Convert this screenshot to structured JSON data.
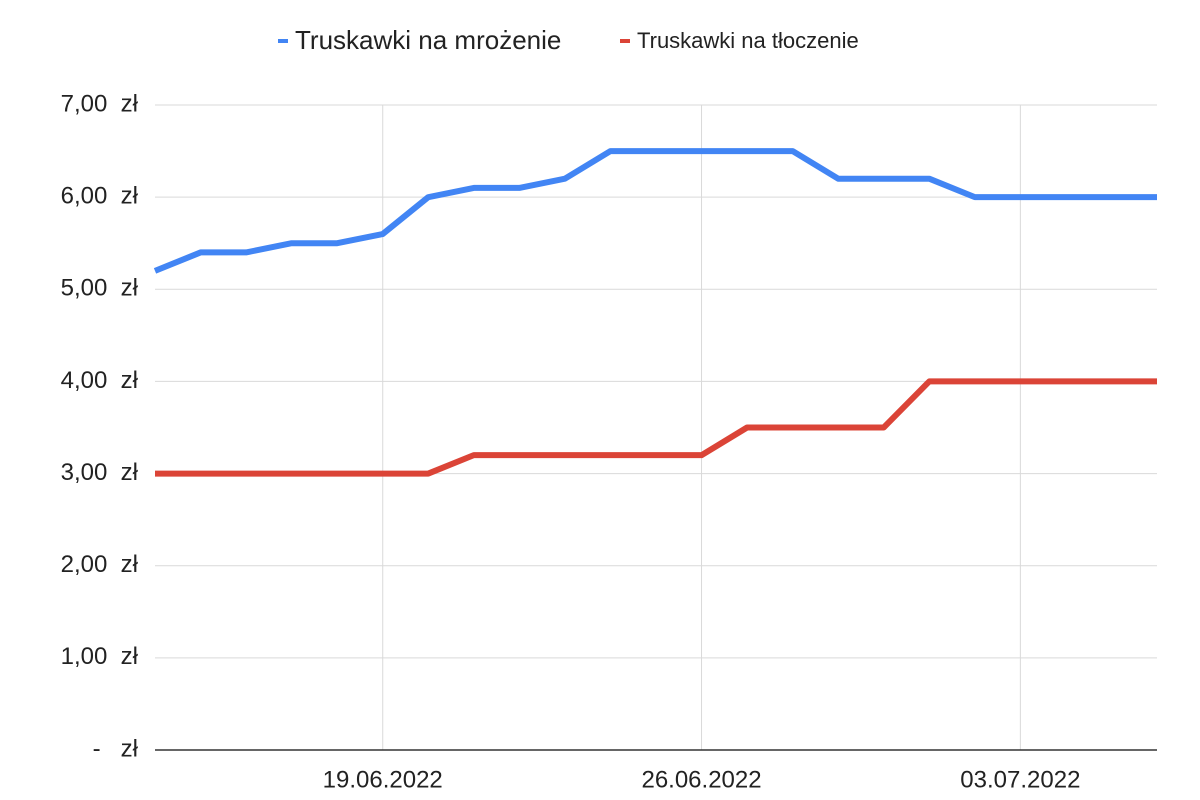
{
  "chart_data": {
    "type": "line",
    "categories": [
      null,
      null,
      null,
      null,
      null,
      "19.06.2022",
      null,
      null,
      null,
      null,
      null,
      null,
      "26.06.2022",
      null,
      null,
      null,
      null,
      null,
      null,
      "03.07.2022",
      null,
      null,
      null
    ],
    "series": [
      {
        "name": "Truskawki na mrożenie",
        "color": "#4285f4",
        "values": [
          5.2,
          5.4,
          5.4,
          5.5,
          5.5,
          5.6,
          6.0,
          6.1,
          6.1,
          6.2,
          6.5,
          6.5,
          6.5,
          6.5,
          6.5,
          6.2,
          6.2,
          6.2,
          6.0,
          6.0,
          6.0,
          6.0,
          6.0
        ]
      },
      {
        "name": "Truskawki na tłoczenie",
        "color": "#db4437",
        "values": [
          3.0,
          3.0,
          3.0,
          3.0,
          3.0,
          3.0,
          3.0,
          3.2,
          3.2,
          3.2,
          3.2,
          3.2,
          3.2,
          3.5,
          3.5,
          3.5,
          3.5,
          4.0,
          4.0,
          4.0,
          4.0,
          4.0,
          4.0
        ]
      }
    ],
    "ylim": [
      0,
      7
    ],
    "yticks": [
      {
        "value": 0,
        "label": "-   zł"
      },
      {
        "value": 1,
        "label": "1,00  zł"
      },
      {
        "value": 2,
        "label": "2,00  zł"
      },
      {
        "value": 3,
        "label": "3,00  zł"
      },
      {
        "value": 4,
        "label": "4,00  zł"
      },
      {
        "value": 5,
        "label": "5,00  zł"
      },
      {
        "value": 6,
        "label": "6,00  zł"
      },
      {
        "value": 7,
        "label": "7,00  zł"
      }
    ],
    "grid": true,
    "legend": "top"
  }
}
